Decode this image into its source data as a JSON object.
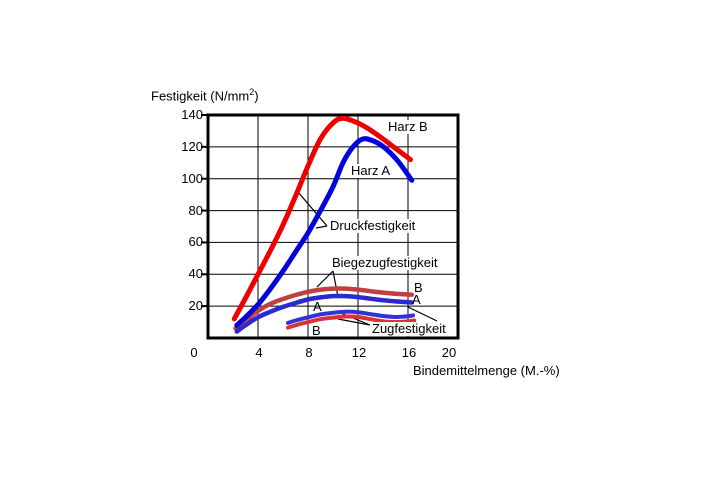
{
  "chart_data": {
    "type": "line",
    "title": "",
    "xlabel": "Bindemittelmenge (M.-%)",
    "ylabel": "Festigkeit (N/mm2)",
    "ylabel_parts": {
      "prefix": "Festigkeit (N/mm",
      "sup": "2",
      "suffix": ")"
    },
    "xlim": [
      0,
      20
    ],
    "ylim": [
      0,
      140
    ],
    "xticks": [
      0,
      4,
      8,
      12,
      16,
      20
    ],
    "yticks": [
      20,
      40,
      60,
      80,
      100,
      120,
      140
    ],
    "grid": true,
    "legend_position": "inline-annotations",
    "series": [
      {
        "name": "Biegezugfestigkeit Harz B",
        "color": "#bf4040",
        "width": 4.5,
        "points": [
          [
            2.2,
            6
          ],
          [
            3,
            11
          ],
          [
            4,
            17
          ],
          [
            5,
            21.5
          ],
          [
            6,
            24.5
          ],
          [
            7,
            27
          ],
          [
            8,
            29
          ],
          [
            9,
            30.4
          ],
          [
            10,
            31
          ],
          [
            11,
            31
          ],
          [
            12,
            30.4
          ],
          [
            13,
            29.4
          ],
          [
            14,
            28.5
          ],
          [
            15,
            27.8
          ],
          [
            16.3,
            27.2
          ]
        ]
      },
      {
        "name": "Biegezugfestigkeit Harz A",
        "color": "#2a2ad0",
        "width": 4.5,
        "points": [
          [
            2.3,
            4
          ],
          [
            3,
            8
          ],
          [
            4,
            13
          ],
          [
            5,
            16.5
          ],
          [
            6,
            19.5
          ],
          [
            7,
            22
          ],
          [
            8,
            24.2
          ],
          [
            9,
            25.5
          ],
          [
            10,
            26.3
          ],
          [
            11,
            26.3
          ],
          [
            12,
            25.7
          ],
          [
            13,
            24.7
          ],
          [
            14,
            23.7
          ],
          [
            15,
            23
          ],
          [
            16.3,
            22.3
          ]
        ]
      },
      {
        "name": "Zugfestigkeit Harz A",
        "color": "#3232d6",
        "width": 4,
        "points": [
          [
            6.4,
            9.5
          ],
          [
            7,
            11
          ],
          [
            8,
            13
          ],
          [
            9,
            14.8
          ],
          [
            10,
            15.8
          ],
          [
            11,
            16.5
          ],
          [
            12,
            16.2
          ],
          [
            13,
            15
          ],
          [
            14,
            13.8
          ],
          [
            15,
            13.2
          ],
          [
            16,
            13.6
          ],
          [
            16.4,
            14.2
          ]
        ]
      },
      {
        "name": "Zugfestigkeit Harz B",
        "color": "#d93333",
        "width": 4,
        "points": [
          [
            6.4,
            6.5
          ],
          [
            7,
            8
          ],
          [
            8,
            10
          ],
          [
            9,
            11.8
          ],
          [
            10,
            12.8
          ],
          [
            11,
            13.5
          ],
          [
            12,
            13.2
          ],
          [
            13,
            11.8
          ],
          [
            14,
            10.5
          ],
          [
            15,
            10
          ],
          [
            16,
            10.4
          ],
          [
            16.5,
            11
          ]
        ]
      },
      {
        "name": "Druckfestigkeit Harz B",
        "color": "#ee0000",
        "width": 5,
        "points": [
          [
            2.1,
            12
          ],
          [
            3,
            25
          ],
          [
            4,
            40
          ],
          [
            5,
            55
          ],
          [
            6,
            71
          ],
          [
            7,
            89
          ],
          [
            8,
            108
          ],
          [
            9,
            125
          ],
          [
            10,
            135
          ],
          [
            10.8,
            138
          ],
          [
            12,
            135
          ],
          [
            13,
            130.5
          ],
          [
            14,
            125
          ],
          [
            15,
            119
          ],
          [
            16.2,
            112
          ]
        ]
      },
      {
        "name": "Druckfestigkeit Harz A",
        "color": "#0202dd",
        "width": 5,
        "points": [
          [
            2.3,
            8
          ],
          [
            3,
            13
          ],
          [
            4,
            21
          ],
          [
            5,
            31
          ],
          [
            6,
            42
          ],
          [
            7,
            54
          ],
          [
            8,
            66
          ],
          [
            9,
            80
          ],
          [
            10,
            95
          ],
          [
            10.8,
            110
          ],
          [
            11.6,
            120
          ],
          [
            12.4,
            125
          ],
          [
            13.3,
            123.5
          ],
          [
            14.2,
            119
          ],
          [
            15.2,
            111
          ],
          [
            16.3,
            99
          ]
        ]
      }
    ],
    "annotations": [
      {
        "name": "harz-b-label",
        "text": "Harz B"
      },
      {
        "name": "harz-a-label",
        "text": "Harz A"
      },
      {
        "name": "druckfestigkeit-label",
        "text": "Druckfestigkeit",
        "leaders": [
          [
            [
              327,
              226
            ],
            [
              298,
              192
            ]
          ],
          [
            [
              327,
              226
            ],
            [
              316,
              228
            ]
          ]
        ]
      },
      {
        "name": "biegezugfestigkeit-label",
        "text": "Biegezugfestigkeit",
        "leaders": [
          [
            [
              333,
              271
            ],
            [
              317,
              287
            ]
          ],
          [
            [
              333,
              271
            ],
            [
              338,
              297
            ]
          ]
        ]
      },
      {
        "name": "zugfestigkeit-label",
        "text": "Zugfestigkeit",
        "leaders": [
          [
            [
              370,
              325
            ],
            [
              336,
              311
            ]
          ],
          [
            [
              370,
              325
            ],
            [
              338,
              319
            ]
          ],
          [
            [
              437,
              321
            ],
            [
              408,
              307
            ]
          ]
        ]
      },
      {
        "name": "curve-label-a-left",
        "text": "A"
      },
      {
        "name": "curve-label-b-left",
        "text": "B"
      },
      {
        "name": "curve-label-b-right",
        "text": "B"
      },
      {
        "name": "curve-label-a-right",
        "text": "A"
      }
    ],
    "colors": {
      "axis": "#000000",
      "grid": "#000000",
      "background": "#ffffff"
    }
  }
}
